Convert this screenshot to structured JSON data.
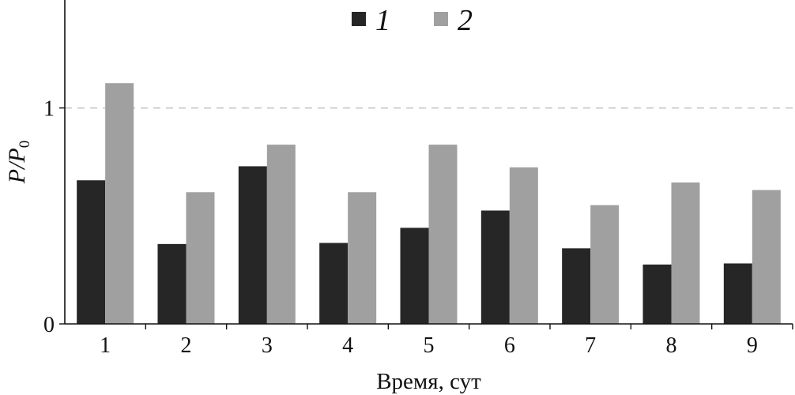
{
  "chart_data": {
    "type": "bar",
    "categories": [
      "1",
      "2",
      "3",
      "4",
      "5",
      "6",
      "7",
      "8",
      "9"
    ],
    "series": [
      {
        "name": "1",
        "color": "#262626",
        "values": [
          0.665,
          0.37,
          0.73,
          0.375,
          0.445,
          0.525,
          0.35,
          0.275,
          0.28
        ]
      },
      {
        "name": "2",
        "color": "#a0a0a0",
        "values": [
          1.115,
          0.61,
          0.83,
          0.61,
          0.83,
          0.725,
          0.55,
          0.655,
          0.62
        ]
      }
    ],
    "title": "",
    "xlabel": "Время, сут",
    "ylabel": {
      "main": "P/P",
      "sub": "0"
    },
    "ylim": [
      0,
      1.5
    ],
    "yticks": [
      "0",
      "1"
    ],
    "reference_line": {
      "y": 1,
      "style": "dashed",
      "color": "#c8c8c8"
    },
    "legend_position": "top-center",
    "grid": false
  }
}
